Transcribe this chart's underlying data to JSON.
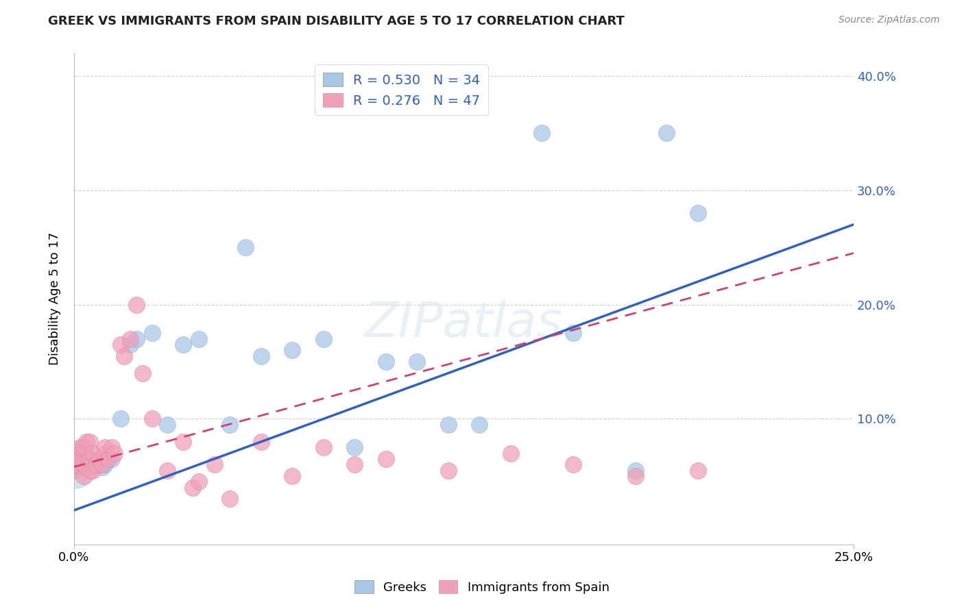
{
  "title": "GREEK VS IMMIGRANTS FROM SPAIN DISABILITY AGE 5 TO 17 CORRELATION CHART",
  "source_text": "Source: ZipAtlas.com",
  "ylabel": "Disability Age 5 to 17",
  "xlim": [
    0.0,
    0.25
  ],
  "ylim": [
    -0.01,
    0.42
  ],
  "ytick_values": [
    0.1,
    0.2,
    0.3,
    0.4
  ],
  "bg_color": "#ffffff",
  "grid_color": "#d0d0d0",
  "greek_color": "#a8c8e8",
  "spain_color": "#f0a0b8",
  "greek_line_color": "#3060c0",
  "spain_line_color": "#d04070",
  "legend_greek_label": "Greeks",
  "legend_spain_label": "Immigrants from Spain",
  "r_greek": 0.53,
  "n_greek": 34,
  "r_spain": 0.276,
  "n_spain": 47,
  "greek_x": [
    0.001,
    0.001,
    0.002,
    0.003,
    0.004,
    0.005,
    0.006,
    0.007,
    0.008,
    0.009,
    0.01,
    0.012,
    0.015,
    0.018,
    0.02,
    0.025,
    0.03,
    0.035,
    0.04,
    0.05,
    0.055,
    0.06,
    0.07,
    0.08,
    0.09,
    0.1,
    0.11,
    0.12,
    0.13,
    0.15,
    0.16,
    0.18,
    0.19,
    0.2
  ],
  "greek_y": [
    0.06,
    0.065,
    0.058,
    0.06,
    0.062,
    0.06,
    0.058,
    0.062,
    0.06,
    0.058,
    0.06,
    0.065,
    0.1,
    0.165,
    0.17,
    0.175,
    0.095,
    0.165,
    0.17,
    0.095,
    0.25,
    0.155,
    0.16,
    0.17,
    0.075,
    0.15,
    0.15,
    0.095,
    0.095,
    0.35,
    0.175,
    0.055,
    0.35,
    0.28
  ],
  "spain_x": [
    0.0,
    0.001,
    0.001,
    0.001,
    0.002,
    0.002,
    0.002,
    0.003,
    0.003,
    0.003,
    0.004,
    0.004,
    0.005,
    0.005,
    0.005,
    0.006,
    0.006,
    0.007,
    0.008,
    0.009,
    0.01,
    0.01,
    0.011,
    0.012,
    0.013,
    0.015,
    0.016,
    0.018,
    0.02,
    0.022,
    0.025,
    0.03,
    0.035,
    0.038,
    0.04,
    0.045,
    0.05,
    0.06,
    0.07,
    0.08,
    0.09,
    0.1,
    0.12,
    0.14,
    0.16,
    0.18,
    0.2
  ],
  "spain_y": [
    0.055,
    0.06,
    0.065,
    0.07,
    0.058,
    0.065,
    0.075,
    0.05,
    0.06,
    0.075,
    0.058,
    0.08,
    0.055,
    0.065,
    0.08,
    0.055,
    0.07,
    0.06,
    0.065,
    0.06,
    0.07,
    0.075,
    0.065,
    0.075,
    0.07,
    0.165,
    0.155,
    0.17,
    0.2,
    0.14,
    0.1,
    0.055,
    0.08,
    0.04,
    0.045,
    0.06,
    0.03,
    0.08,
    0.05,
    0.075,
    0.06,
    0.065,
    0.055,
    0.07,
    0.06,
    0.05,
    0.055
  ],
  "greek_line_x0": 0.0,
  "greek_line_y0": 0.02,
  "greek_line_x1": 0.25,
  "greek_line_y1": 0.27,
  "spain_line_x0": 0.0,
  "spain_line_y0": 0.058,
  "spain_line_x1": 0.25,
  "spain_line_y1": 0.245
}
